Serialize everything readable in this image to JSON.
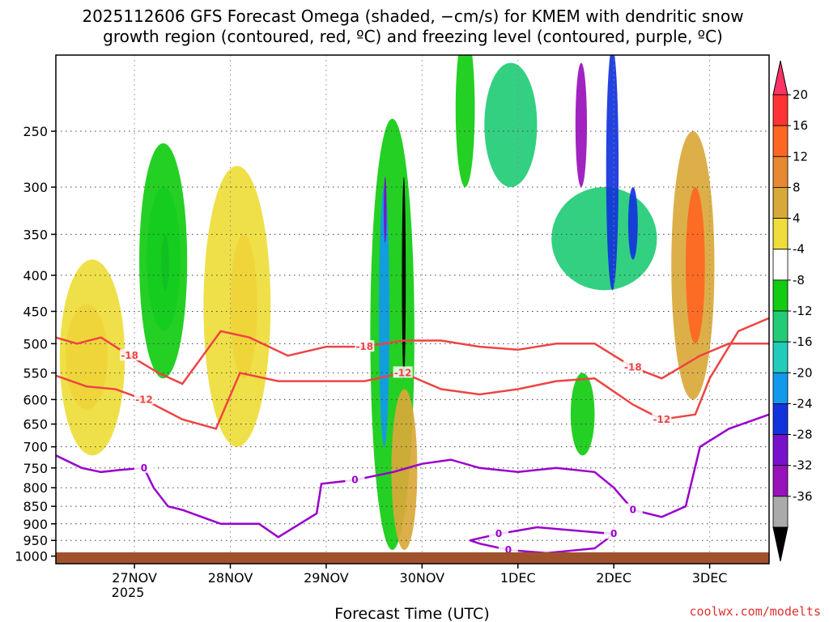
{
  "chart_data": {
    "type": "heatmap",
    "title_line1": "2025112606 GFS Forecast Omega (shaded, −cm/s) for KMEM with dendritic snow",
    "title_line2": "growth region (contoured, red, ºC) and freezing level (contoured, purple, ºC)",
    "xlabel": "Forecast Time (UTC)",
    "credit": "coolwx.com/modelts",
    "x_ticks": [
      "27NOV",
      "28NOV",
      "29NOV",
      "30NOV",
      "1DEC",
      "2DEC",
      "3DEC"
    ],
    "x_year_label": "2025",
    "x_range_days": [
      -0.82,
      6.62
    ],
    "y_ticks": [
      250,
      300,
      350,
      400,
      450,
      500,
      550,
      600,
      650,
      700,
      750,
      800,
      850,
      900,
      950,
      1000
    ],
    "y_range_hpa": [
      195,
      1025
    ],
    "y_scale": "log-pressure",
    "grid": true,
    "colorbar": {
      "ticks": [
        "20",
        "16",
        "12",
        "8",
        "4",
        "-4",
        "-8",
        "-12",
        "-16",
        "-20",
        "-24",
        "-28",
        "-32",
        "-36"
      ],
      "colors": [
        "#ff3366",
        "#ff3333",
        "#ff6622",
        "#e88830",
        "#d9a83a",
        "#eedd3a",
        "#ffffff",
        "#11cc11",
        "#22cc77",
        "#22ccbb",
        "#1199ee",
        "#1133dd",
        "#7711cc",
        "#9911bb",
        "#aaaaaa",
        "#000000"
      ],
      "extend": "both"
    },
    "omega_features": [
      {
        "x0": -0.72,
        "x1": -0.28,
        "p0": 440,
        "p1": 620,
        "level": 12
      },
      {
        "x0": -0.78,
        "x1": -0.1,
        "p0": 380,
        "p1": 720,
        "level": 6
      },
      {
        "x0": 1.0,
        "x1": 1.28,
        "p0": 350,
        "p1": 560,
        "level": 12
      },
      {
        "x0": 0.72,
        "x1": 1.42,
        "p0": 280,
        "p1": 700,
        "level": 6
      },
      {
        "x0": 0.13,
        "x1": 0.48,
        "p0": 300,
        "p1": 480,
        "level": -12
      },
      {
        "x0": 0.28,
        "x1": 0.36,
        "p0": 350,
        "p1": 420,
        "level": -20
      },
      {
        "x0": 0.05,
        "x1": 0.55,
        "p0": 260,
        "p1": 560,
        "level": -6
      },
      {
        "x0": 2.46,
        "x1": 2.92,
        "p0": 240,
        "p1": 980,
        "level": -6
      },
      {
        "x0": 2.55,
        "x1": 2.66,
        "p0": 300,
        "p1": 700,
        "level": -16
      },
      {
        "x0": 2.6,
        "x1": 2.63,
        "p0": 290,
        "p1": 360,
        "level": -24
      },
      {
        "x0": 2.79,
        "x1": 2.83,
        "p0": 290,
        "p1": 560,
        "level": -36
      },
      {
        "x0": 2.68,
        "x1": 2.95,
        "p0": 580,
        "p1": 980,
        "level": 10
      },
      {
        "x0": 3.35,
        "x1": 3.55,
        "p0": 180,
        "p1": 300,
        "level": -6
      },
      {
        "x0": 3.65,
        "x1": 4.2,
        "p0": 200,
        "p1": 300,
        "level": -8
      },
      {
        "x0": 4.35,
        "x1": 5.45,
        "p0": 300,
        "p1": 420,
        "level": -10
      },
      {
        "x0": 4.6,
        "x1": 4.72,
        "p0": 200,
        "p1": 300,
        "level": -28
      },
      {
        "x0": 4.92,
        "x1": 5.05,
        "p0": 190,
        "p1": 420,
        "level": -20
      },
      {
        "x0": 5.15,
        "x1": 5.25,
        "p0": 300,
        "p1": 380,
        "level": -20
      },
      {
        "x0": 4.55,
        "x1": 4.8,
        "p0": 550,
        "p1": 720,
        "level": -6
      },
      {
        "x0": 5.6,
        "x1": 6.05,
        "p0": 250,
        "p1": 600,
        "level": 8
      },
      {
        "x0": 5.75,
        "x1": 5.95,
        "p0": 300,
        "p1": 500,
        "level": 12
      }
    ],
    "dendritic_contours": [
      {
        "label": "-18",
        "points": [
          [
            -0.82,
            490
          ],
          [
            -0.6,
            500
          ],
          [
            -0.35,
            490
          ],
          [
            -0.05,
            520
          ],
          [
            0.25,
            550
          ],
          [
            0.5,
            570
          ],
          [
            0.9,
            480
          ],
          [
            1.2,
            490
          ],
          [
            1.6,
            520
          ],
          [
            2.0,
            505
          ],
          [
            2.4,
            505
          ],
          [
            2.8,
            495
          ],
          [
            3.2,
            495
          ],
          [
            3.6,
            505
          ],
          [
            4.0,
            510
          ],
          [
            4.4,
            500
          ],
          [
            4.8,
            500
          ],
          [
            5.2,
            540
          ],
          [
            5.5,
            560
          ],
          [
            5.9,
            520
          ],
          [
            6.2,
            500
          ],
          [
            6.62,
            500
          ]
        ]
      },
      {
        "label": "-12",
        "points": [
          [
            -0.82,
            555
          ],
          [
            -0.5,
            575
          ],
          [
            -0.2,
            580
          ],
          [
            0.1,
            600
          ],
          [
            0.5,
            640
          ],
          [
            0.85,
            660
          ],
          [
            1.1,
            550
          ],
          [
            1.5,
            565
          ],
          [
            2.0,
            565
          ],
          [
            2.4,
            565
          ],
          [
            2.8,
            550
          ],
          [
            3.2,
            580
          ],
          [
            3.6,
            590
          ],
          [
            4.0,
            580
          ],
          [
            4.4,
            565
          ],
          [
            4.8,
            560
          ],
          [
            5.2,
            610
          ],
          [
            5.5,
            640
          ],
          [
            5.85,
            630
          ],
          [
            6.0,
            560
          ],
          [
            6.3,
            480
          ],
          [
            6.62,
            460
          ]
        ]
      }
    ],
    "freezing_contours": [
      {
        "label": "0",
        "points": [
          [
            -0.82,
            720
          ],
          [
            -0.55,
            750
          ],
          [
            -0.35,
            760
          ],
          [
            -0.15,
            755
          ],
          [
            0.1,
            750
          ],
          [
            0.2,
            800
          ],
          [
            0.35,
            850
          ],
          [
            0.5,
            860
          ],
          [
            0.9,
            900
          ],
          [
            1.3,
            900
          ],
          [
            1.5,
            940
          ],
          [
            1.9,
            870
          ],
          [
            1.95,
            790
          ],
          [
            2.3,
            780
          ],
          [
            2.7,
            760
          ],
          [
            3.0,
            740
          ],
          [
            3.3,
            730
          ],
          [
            3.6,
            750
          ],
          [
            4.0,
            760
          ],
          [
            4.4,
            750
          ],
          [
            4.8,
            760
          ],
          [
            5.0,
            800
          ],
          [
            5.2,
            860
          ],
          [
            5.5,
            880
          ],
          [
            5.75,
            850
          ],
          [
            5.9,
            700
          ],
          [
            6.2,
            660
          ],
          [
            6.62,
            630
          ]
        ]
      },
      {
        "label": "0",
        "points": [
          [
            3.5,
            950
          ],
          [
            3.8,
            930
          ],
          [
            4.2,
            910
          ],
          [
            4.6,
            920
          ],
          [
            5.0,
            930
          ],
          [
            4.8,
            975
          ],
          [
            4.3,
            990
          ],
          [
            3.9,
            980
          ],
          [
            3.6,
            960
          ],
          [
            3.5,
            950
          ]
        ]
      }
    ]
  }
}
